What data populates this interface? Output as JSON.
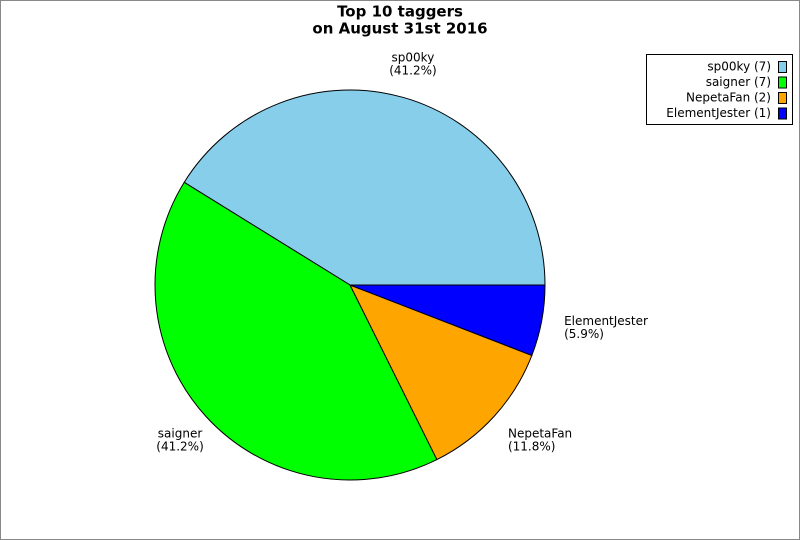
{
  "chart_data": {
    "type": "pie",
    "title": "Top 10 taggers",
    "subtitle": "on August 31st 2016",
    "categories": [
      "sp00ky",
      "saigner",
      "NepetaFan",
      "ElementJester"
    ],
    "values": [
      7,
      7,
      2,
      1
    ],
    "legend_labels": [
      "sp00ky (7)",
      "saigner (7)",
      "NepetaFan (2)",
      "ElementJester (1)"
    ],
    "percents": [
      41.2,
      41.2,
      11.8,
      5.9
    ],
    "percent_labels": [
      "(41.2%)",
      "(41.2%)",
      "(11.8%)",
      "(5.9%)"
    ],
    "colors": [
      "#87ceeb",
      "#00ff00",
      "#ffa500",
      "#0000ff"
    ],
    "legend": "top-right"
  }
}
